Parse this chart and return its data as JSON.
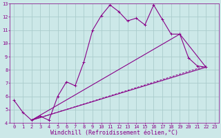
{
  "title": "",
  "xlabel": "Windchill (Refroidissement éolien,°C)",
  "ylabel": "",
  "bg_color": "#cce8e8",
  "grid_color": "#aacccc",
  "line_color": "#880088",
  "xlim": [
    -0.5,
    23.5
  ],
  "ylim": [
    4,
    13
  ],
  "xticks": [
    0,
    1,
    2,
    3,
    4,
    5,
    6,
    7,
    8,
    9,
    10,
    11,
    12,
    13,
    14,
    15,
    16,
    17,
    18,
    19,
    20,
    21,
    22,
    23
  ],
  "yticks": [
    4,
    5,
    6,
    7,
    8,
    9,
    10,
    11,
    12,
    13
  ],
  "main_x": [
    0,
    1,
    2,
    3,
    4,
    5,
    6,
    7,
    8,
    9,
    10,
    11,
    12,
    13,
    14,
    15,
    16,
    17,
    18,
    19,
    20,
    21,
    22
  ],
  "main_y": [
    5.7,
    4.8,
    4.2,
    4.5,
    4.2,
    6.0,
    7.1,
    6.8,
    8.6,
    11.0,
    12.1,
    12.9,
    12.4,
    11.7,
    11.9,
    11.4,
    12.9,
    11.8,
    10.7,
    10.7,
    8.9,
    8.3,
    8.2
  ],
  "line2_x": [
    2,
    22
  ],
  "line2_y": [
    4.2,
    8.2
  ],
  "line3_x": [
    2,
    19,
    22
  ],
  "line3_y": [
    4.2,
    10.7,
    8.2
  ],
  "line4_x": [
    2,
    22
  ],
  "line4_y": [
    4.2,
    8.3
  ],
  "font_size_tick": 5,
  "font_size_label": 6,
  "spine_color": "#880088"
}
